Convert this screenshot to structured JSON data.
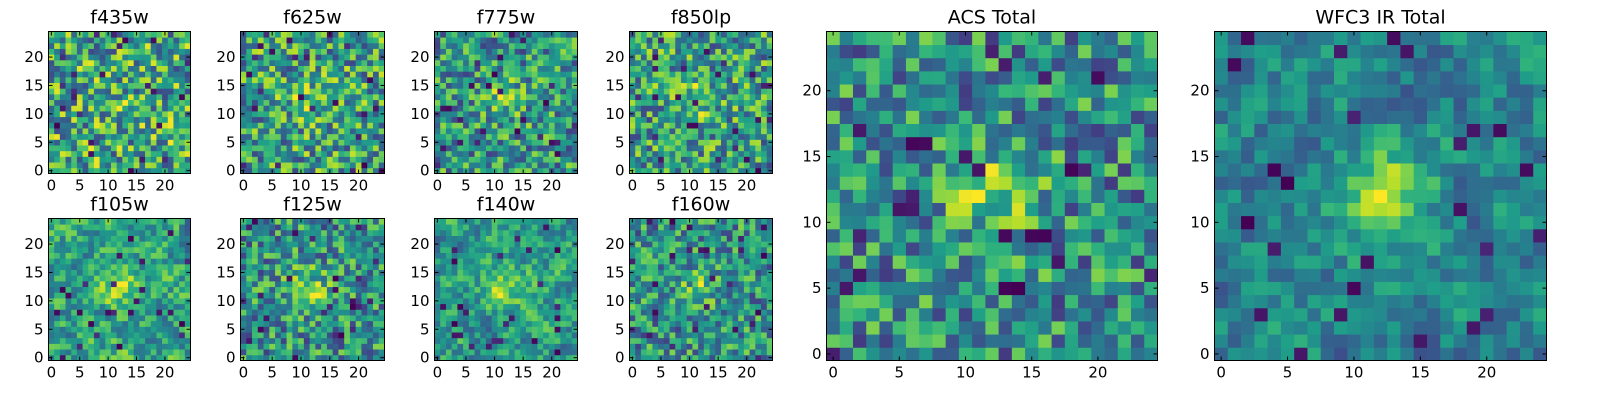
{
  "chart_data": [
    {
      "type": "heatmap",
      "title": "f435w",
      "grid_size": 25,
      "xlim": [
        -0.5,
        24.5
      ],
      "ylim": [
        -0.5,
        24.5
      ],
      "xticks": [
        0,
        5,
        10,
        15,
        20
      ],
      "yticks": [
        0,
        5,
        10,
        15,
        20
      ],
      "colormap": "viridis",
      "grid": false,
      "seed": 11,
      "blob_strength": 0.05,
      "smooth": 0
    },
    {
      "type": "heatmap",
      "title": "f625w",
      "grid_size": 25,
      "xlim": [
        -0.5,
        24.5
      ],
      "ylim": [
        -0.5,
        24.5
      ],
      "xticks": [
        0,
        5,
        10,
        15,
        20
      ],
      "yticks": [
        0,
        5,
        10,
        15,
        20
      ],
      "colormap": "viridis",
      "grid": false,
      "seed": 23,
      "blob_strength": 0.25,
      "smooth": 0
    },
    {
      "type": "heatmap",
      "title": "f775w",
      "grid_size": 25,
      "xlim": [
        -0.5,
        24.5
      ],
      "ylim": [
        -0.5,
        24.5
      ],
      "xticks": [
        0,
        5,
        10,
        15,
        20
      ],
      "yticks": [
        0,
        5,
        10,
        15,
        20
      ],
      "colormap": "viridis",
      "grid": false,
      "seed": 37,
      "blob_strength": 0.3,
      "smooth": 0
    },
    {
      "type": "heatmap",
      "title": "f850lp",
      "grid_size": 25,
      "xlim": [
        -0.5,
        24.5
      ],
      "ylim": [
        -0.5,
        24.5
      ],
      "xticks": [
        0,
        5,
        10,
        15,
        20
      ],
      "yticks": [
        0,
        5,
        10,
        15,
        20
      ],
      "colormap": "viridis",
      "grid": false,
      "seed": 41,
      "blob_strength": 0.25,
      "smooth": 0
    },
    {
      "type": "heatmap",
      "title": "f105w",
      "grid_size": 25,
      "xlim": [
        -0.5,
        24.5
      ],
      "ylim": [
        -0.5,
        24.5
      ],
      "xticks": [
        0,
        5,
        10,
        15,
        20
      ],
      "yticks": [
        0,
        5,
        10,
        15,
        20
      ],
      "colormap": "viridis",
      "grid": false,
      "seed": 53,
      "blob_strength": 0.3,
      "smooth": 1
    },
    {
      "type": "heatmap",
      "title": "f125w",
      "grid_size": 25,
      "xlim": [
        -0.5,
        24.5
      ],
      "ylim": [
        -0.5,
        24.5
      ],
      "xticks": [
        0,
        5,
        10,
        15,
        20
      ],
      "yticks": [
        0,
        5,
        10,
        15,
        20
      ],
      "colormap": "viridis",
      "grid": false,
      "seed": 67,
      "blob_strength": 0.4,
      "smooth": 0
    },
    {
      "type": "heatmap",
      "title": "f140w",
      "grid_size": 25,
      "xlim": [
        -0.5,
        24.5
      ],
      "ylim": [
        -0.5,
        24.5
      ],
      "xticks": [
        0,
        5,
        10,
        15,
        20
      ],
      "yticks": [
        0,
        5,
        10,
        15,
        20
      ],
      "colormap": "viridis",
      "grid": false,
      "seed": 79,
      "blob_strength": 0.45,
      "smooth": 1
    },
    {
      "type": "heatmap",
      "title": "f160w",
      "grid_size": 25,
      "xlim": [
        -0.5,
        24.5
      ],
      "ylim": [
        -0.5,
        24.5
      ],
      "xticks": [
        0,
        5,
        10,
        15,
        20
      ],
      "yticks": [
        0,
        5,
        10,
        15,
        20
      ],
      "colormap": "viridis",
      "grid": false,
      "seed": 83,
      "blob_strength": 0.3,
      "smooth": 0
    },
    {
      "type": "heatmap",
      "title": "ACS Total",
      "grid_size": 25,
      "xlim": [
        -0.5,
        24.5
      ],
      "ylim": [
        -0.5,
        24.5
      ],
      "xticks": [
        0,
        5,
        10,
        15,
        20
      ],
      "yticks": [
        0,
        5,
        10,
        15,
        20
      ],
      "colormap": "viridis",
      "grid": false,
      "seed": 97,
      "blob_strength": 0.45,
      "smooth": 0
    },
    {
      "type": "heatmap",
      "title": "WFC3 IR Total",
      "grid_size": 25,
      "xlim": [
        -0.5,
        24.5
      ],
      "ylim": [
        -0.5,
        24.5
      ],
      "xticks": [
        0,
        5,
        10,
        15,
        20
      ],
      "yticks": [
        0,
        5,
        10,
        15,
        20
      ],
      "colormap": "viridis",
      "grid": false,
      "seed": 101,
      "blob_strength": 0.6,
      "smooth": 1
    }
  ]
}
